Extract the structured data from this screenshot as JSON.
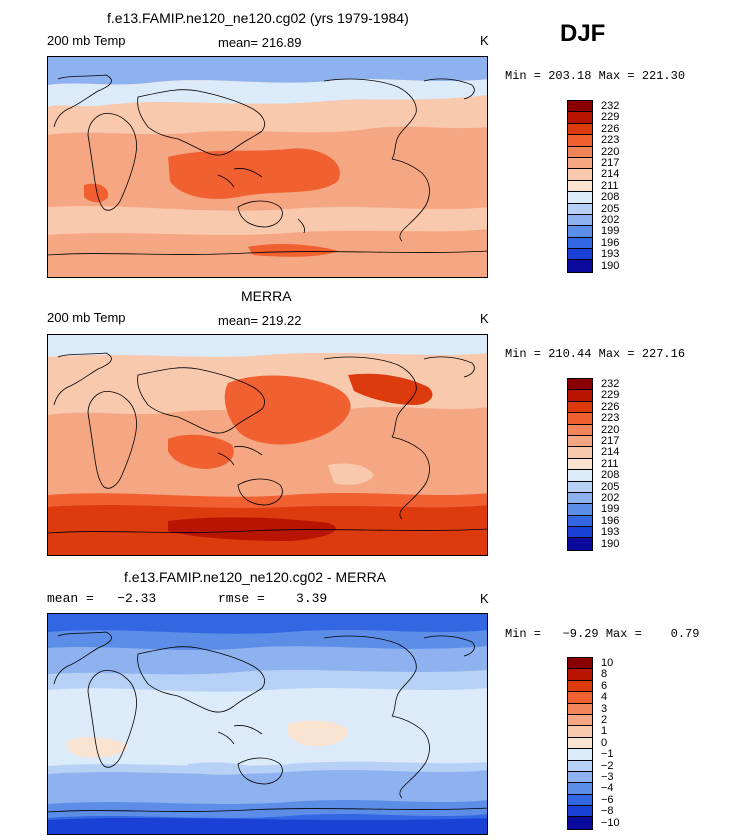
{
  "season": "DJF",
  "chart_data": [
    {
      "type": "heatmap",
      "title": "f.e13.FAMIP.ne120_ne120.cg02 (yrs 1979-1984)",
      "left_label": "200 mb Temp",
      "stat_text": "mean= 216.89",
      "units": "K",
      "minmax_text": "Min = 203.18 Max = 221.30",
      "min": 203.18,
      "max": 221.3,
      "mean": 216.89,
      "levels": [
        "232",
        "229",
        "226",
        "223",
        "220",
        "217",
        "214",
        "211",
        "208",
        "205",
        "202",
        "199",
        "196",
        "193",
        "190"
      ],
      "colors": [
        "#8a0000",
        "#b81400",
        "#dd3a0e",
        "#f06030",
        "#f2845a",
        "#f5a683",
        "#f9c9ae",
        "#fbe3d2",
        "#dcebfa",
        "#b6d1f5",
        "#8eb2ef",
        "#5c8ee8",
        "#3366e3",
        "#1a40d6",
        "#0a0a9c"
      ]
    },
    {
      "type": "heatmap",
      "title": "MERRA",
      "left_label": "200 mb Temp",
      "stat_text": "mean= 219.22",
      "units": "K",
      "minmax_text": "Min = 210.44 Max = 227.16",
      "min": 210.44,
      "max": 227.16,
      "mean": 219.22,
      "levels": [
        "232",
        "229",
        "226",
        "223",
        "220",
        "217",
        "214",
        "211",
        "208",
        "205",
        "202",
        "199",
        "196",
        "193",
        "190"
      ],
      "colors": [
        "#8a0000",
        "#b81400",
        "#dd3a0e",
        "#f06030",
        "#f2845a",
        "#f5a683",
        "#f9c9ae",
        "#fbe3d2",
        "#dcebfa",
        "#b6d1f5",
        "#8eb2ef",
        "#5c8ee8",
        "#3366e3",
        "#1a40d6",
        "#0a0a9c"
      ]
    },
    {
      "type": "heatmap",
      "title": "f.e13.FAMIP.ne120_ne120.cg02 - MERRA",
      "left_label": "mean =   −2.33",
      "stat_text": "rmse =    3.39",
      "units": "K",
      "minmax_text": "Min =   −9.29 Max =    0.79",
      "min": -9.29,
      "max": 0.79,
      "mean": -2.33,
      "rmse": 3.39,
      "levels": [
        "10",
        "8",
        "6",
        "4",
        "3",
        "2",
        "1",
        "0",
        "−1",
        "−2",
        "−3",
        "−4",
        "−6",
        "−8",
        "−10"
      ],
      "colors": [
        "#8a0000",
        "#b81400",
        "#dd3a0e",
        "#f06030",
        "#f2845a",
        "#f5a683",
        "#f9c9ae",
        "#fbe3d2",
        "#dcebfa",
        "#b6d1f5",
        "#8eb2ef",
        "#5c8ee8",
        "#3366e3",
        "#1a40d6",
        "#0a0a9c"
      ]
    }
  ]
}
